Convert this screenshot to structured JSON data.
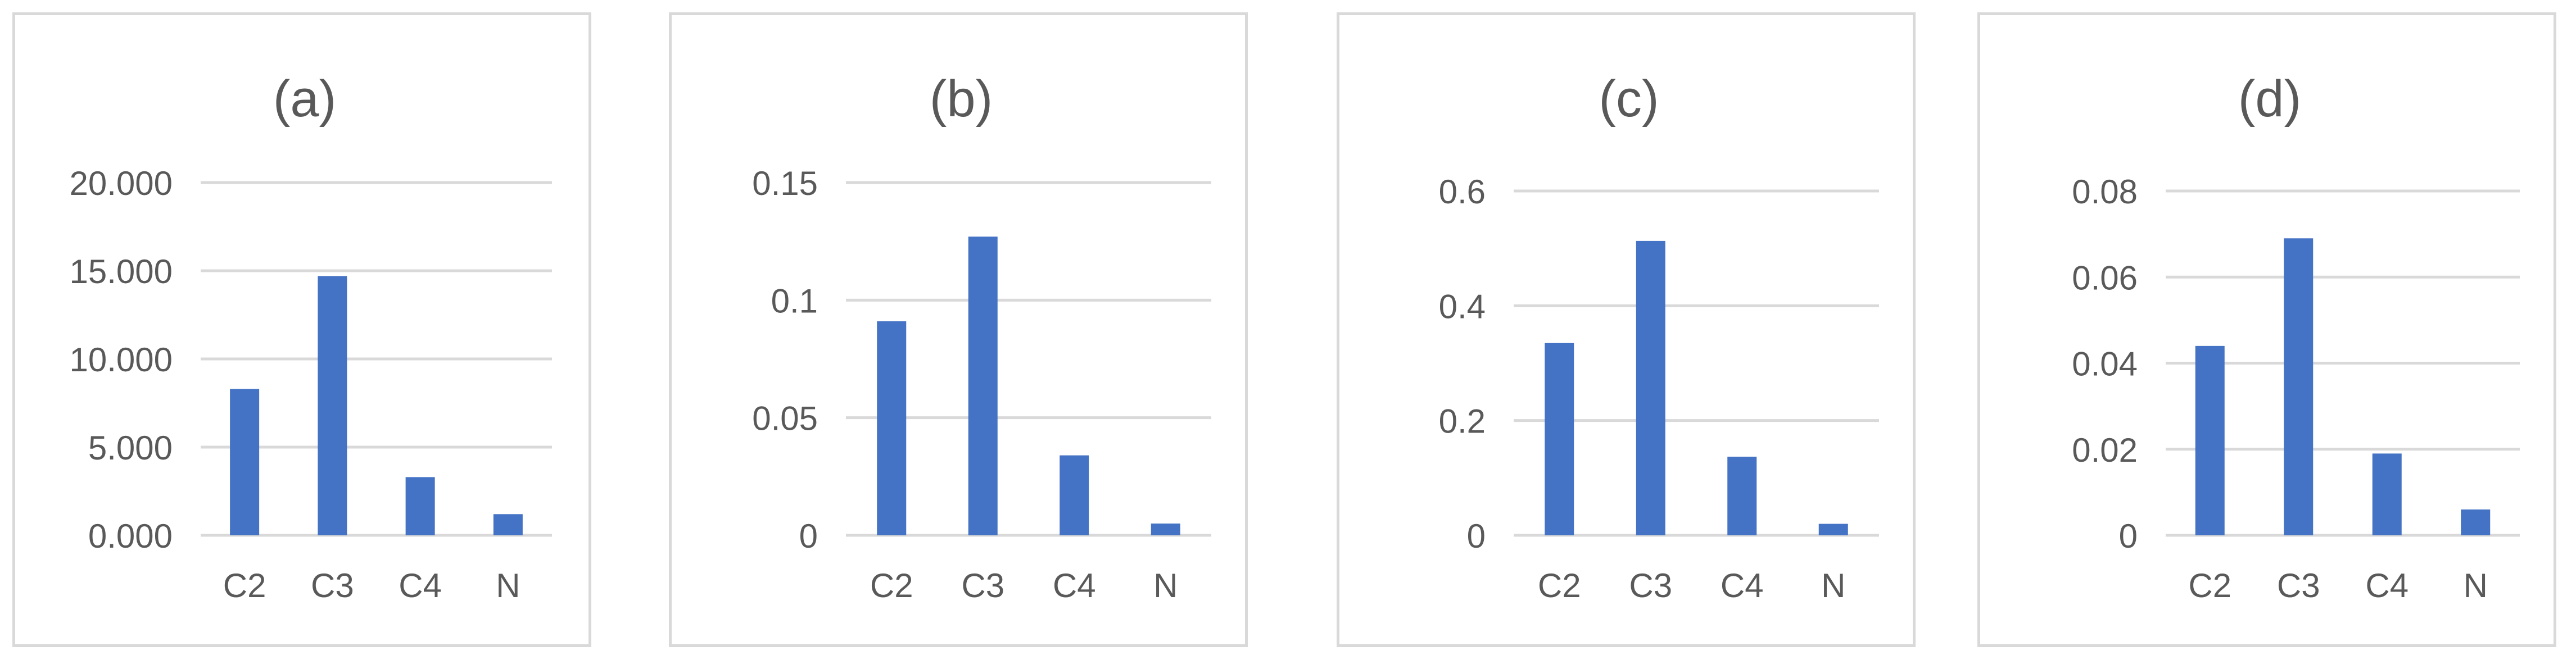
{
  "chart_data": [
    {
      "type": "bar",
      "title": "(a)",
      "categories": [
        "C2",
        "C3",
        "C4",
        "N"
      ],
      "values": [
        8.3,
        14.7,
        3.3,
        1.2
      ],
      "yticks": [
        "0.000",
        "5.000",
        "10.000",
        "15.000",
        "20.000"
      ],
      "ylim": [
        0,
        20
      ],
      "grid": true,
      "bar_color": "#4472c4"
    },
    {
      "type": "bar",
      "title": "(b)",
      "categories": [
        "C2",
        "C3",
        "C4",
        "N"
      ],
      "values": [
        0.091,
        0.127,
        0.034,
        0.005
      ],
      "yticks": [
        "0",
        "0.05",
        "0.1",
        "0.15"
      ],
      "ylim": [
        0,
        0.15
      ],
      "grid": true,
      "bar_color": "#4472c4"
    },
    {
      "type": "bar",
      "title": "(c)",
      "categories": [
        "C2",
        "C3",
        "C4",
        "N"
      ],
      "values": [
        0.335,
        0.513,
        0.137,
        0.02
      ],
      "yticks": [
        "0",
        "0.2",
        "0.4",
        "0.6"
      ],
      "ylim": [
        0,
        0.6
      ],
      "grid": true,
      "bar_color": "#4472c4"
    },
    {
      "type": "bar",
      "title": "(d)",
      "categories": [
        "C2",
        "C3",
        "C4",
        "N"
      ],
      "values": [
        0.044,
        0.069,
        0.019,
        0.006
      ],
      "yticks": [
        "0",
        "0.02",
        "0.04",
        "0.06",
        "0.08"
      ],
      "ylim": [
        0,
        0.08
      ],
      "grid": true,
      "bar_color": "#4472c4"
    }
  ]
}
